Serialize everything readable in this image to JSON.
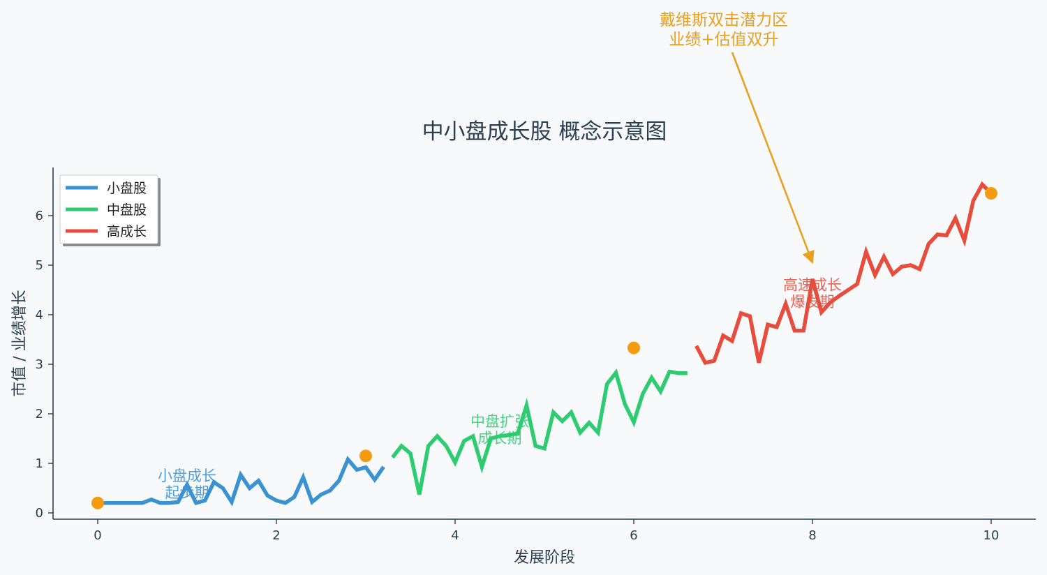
{
  "chart_data": {
    "type": "line",
    "title": "中小盘成长股 概念示意图",
    "xlabel": "发展阶段",
    "ylabel": "市值 / 业绩增长",
    "xlim": [
      -0.5,
      10.5
    ],
    "ylim": [
      -0.12,
      6.9
    ],
    "xticks": [
      0,
      2,
      4,
      6,
      8,
      10
    ],
    "yticks": [
      0,
      1,
      2,
      3,
      4,
      5,
      6
    ],
    "grid": false,
    "legend_position": "top-left",
    "series": [
      {
        "name": "小盘股",
        "color": "#3a92d0",
        "x": [
          0,
          0.1,
          0.2,
          0.3,
          0.4,
          0.5,
          0.6,
          0.7,
          0.8,
          0.9,
          1.0,
          1.1,
          1.2,
          1.3,
          1.4,
          1.5,
          1.6,
          1.7,
          1.8,
          1.9,
          2.0,
          2.1,
          2.2,
          2.3,
          2.4,
          2.5,
          2.6,
          2.7,
          2.8,
          2.9,
          3.0,
          3.1,
          3.2
        ],
        "y": [
          0.2,
          0.2,
          0.2,
          0.2,
          0.2,
          0.2,
          0.27,
          0.2,
          0.2,
          0.22,
          0.57,
          0.2,
          0.25,
          0.62,
          0.5,
          0.22,
          0.77,
          0.5,
          0.65,
          0.35,
          0.25,
          0.2,
          0.32,
          0.72,
          0.22,
          0.37,
          0.45,
          0.65,
          1.08,
          0.87,
          0.92,
          0.67,
          0.93
        ]
      },
      {
        "name": "中盘股",
        "color": "#2ecc71",
        "x": [
          3.3,
          3.4,
          3.5,
          3.6,
          3.7,
          3.8,
          3.9,
          4.0,
          4.1,
          4.2,
          4.3,
          4.4,
          4.5,
          4.6,
          4.7,
          4.8,
          4.9,
          5.0,
          5.1,
          5.2,
          5.3,
          5.4,
          5.5,
          5.6,
          5.7,
          5.8,
          5.9,
          6.0,
          6.1,
          6.2,
          6.3,
          6.4,
          6.5,
          6.6
        ],
        "y": [
          1.12,
          1.35,
          1.2,
          0.37,
          1.35,
          1.55,
          1.35,
          1.02,
          1.45,
          1.55,
          0.93,
          1.5,
          1.55,
          1.57,
          1.6,
          2.17,
          1.35,
          1.3,
          2.03,
          1.85,
          2.03,
          1.62,
          1.82,
          1.62,
          2.6,
          2.83,
          2.2,
          1.83,
          2.4,
          2.73,
          2.45,
          2.85,
          2.82,
          2.82
        ]
      },
      {
        "name": "高成长",
        "color": "#e74c3c",
        "x": [
          6.7,
          6.8,
          6.9,
          7.0,
          7.1,
          7.2,
          7.3,
          7.4,
          7.5,
          7.6,
          7.7,
          7.8,
          7.9,
          8.0,
          8.1,
          8.2,
          8.3,
          8.4,
          8.5,
          8.6,
          8.7,
          8.8,
          8.9,
          9.0,
          9.1,
          9.2,
          9.3,
          9.4,
          9.5,
          9.6,
          9.7,
          9.8,
          9.9,
          10.0
        ],
        "y": [
          3.37,
          3.03,
          3.07,
          3.58,
          3.47,
          4.03,
          3.97,
          3.03,
          3.8,
          3.75,
          4.22,
          3.68,
          3.68,
          4.72,
          4.05,
          4.25,
          4.38,
          4.5,
          4.62,
          5.27,
          4.8,
          5.17,
          4.82,
          4.97,
          5.0,
          4.92,
          5.43,
          5.62,
          5.6,
          5.95,
          5.5,
          6.3,
          6.63,
          6.45
        ]
      }
    ],
    "markers": {
      "color": "#f39c12",
      "points": [
        {
          "x": 0,
          "y": 0.2
        },
        {
          "x": 3,
          "y": 1.15
        },
        {
          "x": 6,
          "y": 3.33
        },
        {
          "x": 10,
          "y": 6.45
        }
      ]
    },
    "stage_labels": [
      {
        "lines": [
          "小盘成长",
          "起步期"
        ],
        "x": 1.0,
        "y": 0.65,
        "color": "#3a92d0"
      },
      {
        "lines": [
          "中盘扩张",
          "成长期"
        ],
        "x": 4.5,
        "y": 1.75,
        "color": "#2ecc71"
      },
      {
        "lines": [
          "高速成长",
          "爆发期"
        ],
        "x": 8.0,
        "y": 4.5,
        "color": "#e74c3c"
      }
    ],
    "annotation": {
      "lines": [
        "戴维斯双击潜力区",
        "业绩+估值双升"
      ],
      "color": "#e8a020",
      "arrow_target": {
        "x": 8.0,
        "y": 5.05
      }
    }
  }
}
